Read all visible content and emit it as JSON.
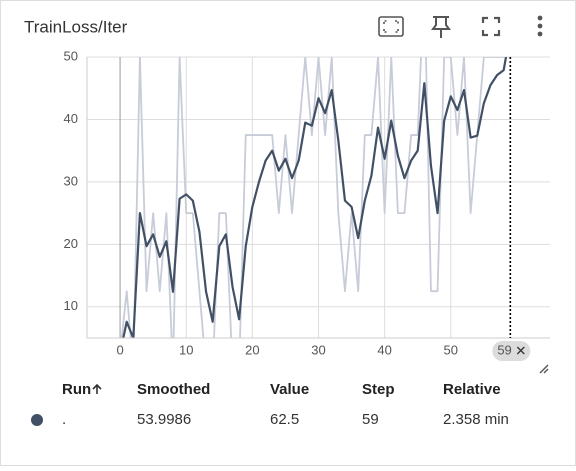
{
  "header": {
    "title": "TrainLoss/Iter"
  },
  "chart_data": {
    "type": "line",
    "x": [
      0,
      1,
      2,
      3,
      4,
      5,
      6,
      7,
      8,
      9,
      10,
      11,
      12,
      13,
      14,
      15,
      16,
      17,
      18,
      19,
      20,
      21,
      22,
      23,
      24,
      25,
      26,
      27,
      28,
      29,
      30,
      31,
      32,
      33,
      34,
      35,
      36,
      37,
      38,
      39,
      40,
      41,
      42,
      43,
      44,
      45,
      46,
      47,
      48,
      49,
      50,
      51,
      52,
      53,
      54,
      55,
      56,
      57,
      58,
      59
    ],
    "series": [
      {
        "color": "#c7ccd8",
        "values": [
          2.5,
          12.5,
          0,
          50,
          12.5,
          25,
          12.5,
          25,
          0,
          50,
          25,
          25,
          12.5,
          0,
          0,
          25,
          25,
          0,
          0,
          37.5,
          37.5,
          37.5,
          37.5,
          37.5,
          25,
          37.5,
          25,
          37.5,
          50,
          37.5,
          50,
          37.5,
          50,
          25,
          12.5,
          25,
          12.5,
          37.5,
          37.5,
          50,
          25,
          50,
          25,
          25,
          37.5,
          37.5,
          62.5,
          12.5,
          12.5,
          50,
          50,
          37.5,
          50,
          25,
          37.5,
          50,
          50,
          50,
          50,
          62.5
        ]
      },
      {
        "color": "#425066",
        "values": [
          2.5,
          7.6,
          5,
          25,
          19.7,
          21.6,
          18,
          20.5,
          12.4,
          27.3,
          28,
          27,
          22,
          12.4,
          7.6,
          19.7,
          21.6,
          13.2,
          8,
          19.7,
          26,
          30,
          33.4,
          35,
          31.8,
          33.7,
          30.6,
          33.4,
          39.5,
          39,
          43.4,
          41,
          44.7,
          36.6,
          27,
          26,
          21,
          27,
          31,
          38.7,
          33.7,
          39.8,
          34.2,
          30.6,
          33.4,
          35,
          45.8,
          32.6,
          25,
          39.8,
          43.7,
          41.5,
          44.7,
          37.1,
          37.4,
          42.6,
          45.5,
          47.1,
          47.9,
          53.9986
        ]
      }
    ],
    "xlim": [
      -5,
      65
    ],
    "xticks": [
      0,
      10,
      20,
      30,
      40,
      50
    ],
    "ylim": [
      5,
      50
    ],
    "yticks": [
      10,
      20,
      30,
      40,
      50
    ],
    "grid": true,
    "cursor_x": 59
  },
  "table": {
    "header": [
      "Run",
      "Smoothed",
      "Value",
      "Step",
      "Relative"
    ],
    "rows": [
      [
        ".",
        "53.9986",
        "62.5",
        "59",
        "2.358 min"
      ]
    ]
  }
}
